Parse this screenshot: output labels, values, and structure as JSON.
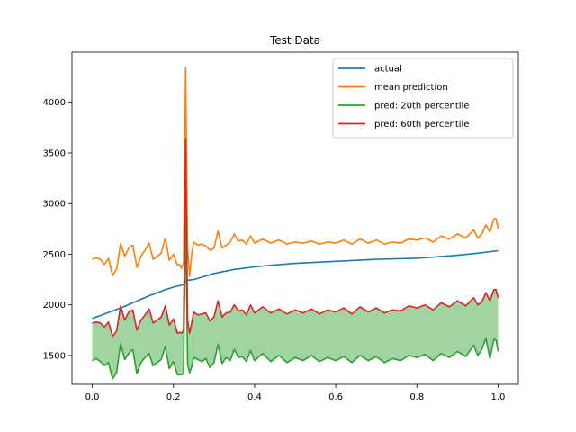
{
  "chart_data": {
    "type": "line",
    "title": "Test Data",
    "xlabel": "",
    "ylabel": "",
    "xlim": [
      -0.05,
      1.05
    ],
    "ylim": [
      1215,
      4495
    ],
    "xticks": [
      0.0,
      0.2,
      0.4,
      0.6,
      0.8,
      1.0
    ],
    "xtick_labels": [
      "0.0",
      "0.2",
      "0.4",
      "0.6",
      "0.8",
      "1.0"
    ],
    "yticks": [
      1500,
      2000,
      2500,
      3000,
      3500,
      4000
    ],
    "ytick_labels": [
      "1500",
      "2000",
      "2500",
      "3000",
      "3500",
      "4000"
    ],
    "grid": false,
    "legend": "top-right",
    "fill_between": {
      "lower_series": "pred: 20th percentile",
      "upper_series": "pred: 60th percentile",
      "color": "#2ca02c",
      "alpha": 0.45
    },
    "series": [
      {
        "name": "actual",
        "color": "#1f77b4",
        "points": [
          [
            0.0,
            1865
          ],
          [
            0.02,
            1895
          ],
          [
            0.04,
            1925
          ],
          [
            0.06,
            1955
          ],
          [
            0.08,
            1985
          ],
          [
            0.1,
            2020
          ],
          [
            0.12,
            2055
          ],
          [
            0.14,
            2090
          ],
          [
            0.16,
            2120
          ],
          [
            0.18,
            2150
          ],
          [
            0.2,
            2175
          ],
          [
            0.22,
            2195
          ],
          [
            0.225,
            2200
          ],
          [
            0.23,
            2240
          ],
          [
            0.25,
            2250
          ],
          [
            0.28,
            2285
          ],
          [
            0.3,
            2310
          ],
          [
            0.35,
            2350
          ],
          [
            0.4,
            2375
          ],
          [
            0.45,
            2395
          ],
          [
            0.5,
            2410
          ],
          [
            0.55,
            2420
          ],
          [
            0.6,
            2430
          ],
          [
            0.65,
            2440
          ],
          [
            0.7,
            2450
          ],
          [
            0.75,
            2455
          ],
          [
            0.8,
            2460
          ],
          [
            0.85,
            2475
          ],
          [
            0.9,
            2490
          ],
          [
            0.95,
            2510
          ],
          [
            1.0,
            2535
          ]
        ]
      },
      {
        "name": "mean prediction",
        "color": "#ff7f0e",
        "points": [
          [
            0.0,
            2450
          ],
          [
            0.01,
            2465
          ],
          [
            0.02,
            2450
          ],
          [
            0.03,
            2400
          ],
          [
            0.04,
            2460
          ],
          [
            0.05,
            2290
          ],
          [
            0.06,
            2350
          ],
          [
            0.07,
            2610
          ],
          [
            0.08,
            2480
          ],
          [
            0.09,
            2560
          ],
          [
            0.1,
            2590
          ],
          [
            0.11,
            2370
          ],
          [
            0.12,
            2480
          ],
          [
            0.13,
            2540
          ],
          [
            0.14,
            2610
          ],
          [
            0.15,
            2450
          ],
          [
            0.16,
            2480
          ],
          [
            0.17,
            2510
          ],
          [
            0.18,
            2660
          ],
          [
            0.19,
            2440
          ],
          [
            0.2,
            2500
          ],
          [
            0.21,
            2390
          ],
          [
            0.215,
            2400
          ],
          [
            0.22,
            2360
          ],
          [
            0.225,
            2420
          ],
          [
            0.23,
            4340
          ],
          [
            0.235,
            2550
          ],
          [
            0.24,
            2280
          ],
          [
            0.245,
            2500
          ],
          [
            0.25,
            2620
          ],
          [
            0.26,
            2590
          ],
          [
            0.27,
            2600
          ],
          [
            0.28,
            2580
          ],
          [
            0.29,
            2540
          ],
          [
            0.3,
            2560
          ],
          [
            0.31,
            2730
          ],
          [
            0.32,
            2560
          ],
          [
            0.33,
            2590
          ],
          [
            0.34,
            2620
          ],
          [
            0.35,
            2700
          ],
          [
            0.36,
            2630
          ],
          [
            0.37,
            2640
          ],
          [
            0.38,
            2600
          ],
          [
            0.39,
            2680
          ],
          [
            0.4,
            2610
          ],
          [
            0.42,
            2650
          ],
          [
            0.44,
            2610
          ],
          [
            0.46,
            2640
          ],
          [
            0.48,
            2600
          ],
          [
            0.5,
            2620
          ],
          [
            0.52,
            2610
          ],
          [
            0.54,
            2630
          ],
          [
            0.56,
            2600
          ],
          [
            0.58,
            2620
          ],
          [
            0.6,
            2610
          ],
          [
            0.62,
            2640
          ],
          [
            0.64,
            2600
          ],
          [
            0.66,
            2650
          ],
          [
            0.68,
            2610
          ],
          [
            0.7,
            2640
          ],
          [
            0.72,
            2600
          ],
          [
            0.74,
            2620
          ],
          [
            0.76,
            2610
          ],
          [
            0.78,
            2650
          ],
          [
            0.8,
            2640
          ],
          [
            0.82,
            2660
          ],
          [
            0.84,
            2620
          ],
          [
            0.86,
            2680
          ],
          [
            0.88,
            2650
          ],
          [
            0.9,
            2700
          ],
          [
            0.92,
            2660
          ],
          [
            0.94,
            2740
          ],
          [
            0.95,
            2660
          ],
          [
            0.96,
            2700
          ],
          [
            0.97,
            2790
          ],
          [
            0.98,
            2720
          ],
          [
            0.99,
            2850
          ],
          [
            0.995,
            2850
          ],
          [
            1.0,
            2750
          ]
        ]
      },
      {
        "name": "pred: 20th percentile",
        "color": "#2ca02c",
        "points": [
          [
            0.0,
            1450
          ],
          [
            0.01,
            1470
          ],
          [
            0.02,
            1440
          ],
          [
            0.03,
            1400
          ],
          [
            0.04,
            1430
          ],
          [
            0.05,
            1270
          ],
          [
            0.06,
            1330
          ],
          [
            0.07,
            1620
          ],
          [
            0.08,
            1460
          ],
          [
            0.09,
            1520
          ],
          [
            0.1,
            1560
          ],
          [
            0.11,
            1320
          ],
          [
            0.12,
            1430
          ],
          [
            0.13,
            1480
          ],
          [
            0.14,
            1520
          ],
          [
            0.15,
            1400
          ],
          [
            0.16,
            1430
          ],
          [
            0.17,
            1460
          ],
          [
            0.18,
            1590
          ],
          [
            0.19,
            1370
          ],
          [
            0.2,
            1440
          ],
          [
            0.21,
            1310
          ],
          [
            0.215,
            1310
          ],
          [
            0.22,
            1310
          ],
          [
            0.225,
            1320
          ],
          [
            0.23,
            2890
          ],
          [
            0.235,
            1410
          ],
          [
            0.24,
            1330
          ],
          [
            0.245,
            1390
          ],
          [
            0.25,
            1480
          ],
          [
            0.26,
            1460
          ],
          [
            0.27,
            1440
          ],
          [
            0.28,
            1470
          ],
          [
            0.29,
            1380
          ],
          [
            0.3,
            1430
          ],
          [
            0.31,
            1610
          ],
          [
            0.32,
            1420
          ],
          [
            0.33,
            1480
          ],
          [
            0.34,
            1450
          ],
          [
            0.35,
            1560
          ],
          [
            0.36,
            1480
          ],
          [
            0.37,
            1490
          ],
          [
            0.38,
            1440
          ],
          [
            0.39,
            1550
          ],
          [
            0.4,
            1450
          ],
          [
            0.42,
            1520
          ],
          [
            0.44,
            1440
          ],
          [
            0.46,
            1500
          ],
          [
            0.48,
            1430
          ],
          [
            0.5,
            1480
          ],
          [
            0.52,
            1450
          ],
          [
            0.54,
            1500
          ],
          [
            0.56,
            1440
          ],
          [
            0.58,
            1480
          ],
          [
            0.6,
            1450
          ],
          [
            0.62,
            1490
          ],
          [
            0.64,
            1430
          ],
          [
            0.66,
            1500
          ],
          [
            0.68,
            1450
          ],
          [
            0.7,
            1490
          ],
          [
            0.72,
            1430
          ],
          [
            0.74,
            1470
          ],
          [
            0.76,
            1450
          ],
          [
            0.78,
            1500
          ],
          [
            0.8,
            1480
          ],
          [
            0.82,
            1510
          ],
          [
            0.84,
            1450
          ],
          [
            0.86,
            1520
          ],
          [
            0.88,
            1480
          ],
          [
            0.9,
            1540
          ],
          [
            0.92,
            1490
          ],
          [
            0.94,
            1600
          ],
          [
            0.95,
            1500
          ],
          [
            0.96,
            1560
          ],
          [
            0.97,
            1670
          ],
          [
            0.98,
            1470
          ],
          [
            0.99,
            1660
          ],
          [
            0.995,
            1650
          ],
          [
            1.0,
            1540
          ]
        ]
      },
      {
        "name": "pred: 60th percentile",
        "color": "#d62728",
        "points": [
          [
            0.0,
            1820
          ],
          [
            0.01,
            1830
          ],
          [
            0.02,
            1820
          ],
          [
            0.03,
            1780
          ],
          [
            0.04,
            1830
          ],
          [
            0.05,
            1690
          ],
          [
            0.06,
            1740
          ],
          [
            0.07,
            1990
          ],
          [
            0.08,
            1850
          ],
          [
            0.09,
            1930
          ],
          [
            0.1,
            1950
          ],
          [
            0.11,
            1750
          ],
          [
            0.12,
            1850
          ],
          [
            0.13,
            1900
          ],
          [
            0.14,
            1960
          ],
          [
            0.15,
            1820
          ],
          [
            0.16,
            1850
          ],
          [
            0.17,
            1880
          ],
          [
            0.18,
            1990
          ],
          [
            0.19,
            1800
          ],
          [
            0.2,
            1860
          ],
          [
            0.21,
            1720
          ],
          [
            0.215,
            1730
          ],
          [
            0.22,
            1720
          ],
          [
            0.225,
            1750
          ],
          [
            0.23,
            3640
          ],
          [
            0.235,
            1850
          ],
          [
            0.24,
            1720
          ],
          [
            0.245,
            1820
          ],
          [
            0.25,
            1930
          ],
          [
            0.26,
            1900
          ],
          [
            0.27,
            1910
          ],
          [
            0.28,
            1920
          ],
          [
            0.29,
            1840
          ],
          [
            0.3,
            1880
          ],
          [
            0.31,
            2040
          ],
          [
            0.32,
            1880
          ],
          [
            0.33,
            1920
          ],
          [
            0.34,
            1930
          ],
          [
            0.35,
            2000
          ],
          [
            0.36,
            1940
          ],
          [
            0.37,
            1950
          ],
          [
            0.38,
            1900
          ],
          [
            0.39,
            2000
          ],
          [
            0.4,
            1920
          ],
          [
            0.42,
            1980
          ],
          [
            0.44,
            1920
          ],
          [
            0.46,
            1960
          ],
          [
            0.48,
            1910
          ],
          [
            0.5,
            1950
          ],
          [
            0.52,
            1920
          ],
          [
            0.54,
            1960
          ],
          [
            0.56,
            1910
          ],
          [
            0.58,
            1950
          ],
          [
            0.6,
            1930
          ],
          [
            0.62,
            1970
          ],
          [
            0.64,
            1910
          ],
          [
            0.66,
            1980
          ],
          [
            0.68,
            1930
          ],
          [
            0.7,
            1970
          ],
          [
            0.72,
            1920
          ],
          [
            0.74,
            1950
          ],
          [
            0.76,
            1940
          ],
          [
            0.78,
            1990
          ],
          [
            0.8,
            1970
          ],
          [
            0.82,
            2000
          ],
          [
            0.84,
            1950
          ],
          [
            0.86,
            2020
          ],
          [
            0.88,
            1980
          ],
          [
            0.9,
            2040
          ],
          [
            0.92,
            1990
          ],
          [
            0.94,
            2070
          ],
          [
            0.95,
            2000
          ],
          [
            0.96,
            2030
          ],
          [
            0.97,
            2120
          ],
          [
            0.98,
            2040
          ],
          [
            0.99,
            2150
          ],
          [
            0.995,
            2150
          ],
          [
            1.0,
            2070
          ]
        ]
      }
    ]
  }
}
